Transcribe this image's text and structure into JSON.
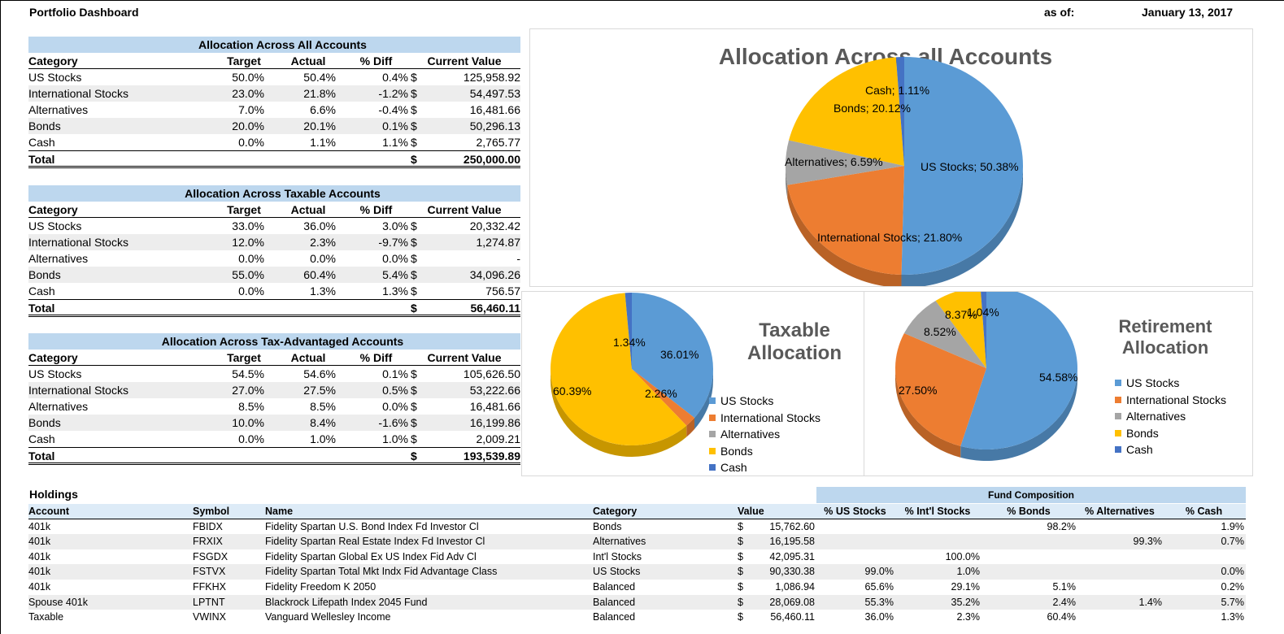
{
  "header": {
    "title": "Portfolio Dashboard",
    "as_of_label": "as of:",
    "as_of_date": "January 13, 2017"
  },
  "columns": {
    "category": "Category",
    "target": "Target",
    "actual": "Actual",
    "diff": "% Diff",
    "current_value": "Current Value",
    "total": "Total",
    "dollar": "$"
  },
  "tables": [
    {
      "title": "Allocation Across All Accounts",
      "rows": [
        {
          "category": "US Stocks",
          "target": "50.0%",
          "actual": "50.4%",
          "diff": "0.4%",
          "value": "125,958.92"
        },
        {
          "category": "International Stocks",
          "target": "23.0%",
          "actual": "21.8%",
          "diff": "-1.2%",
          "value": "54,497.53"
        },
        {
          "category": "Alternatives",
          "target": "7.0%",
          "actual": "6.6%",
          "diff": "-0.4%",
          "value": "16,481.66"
        },
        {
          "category": "Bonds",
          "target": "20.0%",
          "actual": "20.1%",
          "diff": "0.1%",
          "value": "50,296.13"
        },
        {
          "category": "Cash",
          "target": "0.0%",
          "actual": "1.1%",
          "diff": "1.1%",
          "value": "2,765.77"
        }
      ],
      "total": "250,000.00"
    },
    {
      "title": "Allocation Across Taxable Accounts",
      "rows": [
        {
          "category": "US Stocks",
          "target": "33.0%",
          "actual": "36.0%",
          "diff": "3.0%",
          "value": "20,332.42"
        },
        {
          "category": "International Stocks",
          "target": "12.0%",
          "actual": "2.3%",
          "diff": "-9.7%",
          "value": "1,274.87"
        },
        {
          "category": "Alternatives",
          "target": "0.0%",
          "actual": "0.0%",
          "diff": "0.0%",
          "value": "-"
        },
        {
          "category": "Bonds",
          "target": "55.0%",
          "actual": "60.4%",
          "diff": "5.4%",
          "value": "34,096.26"
        },
        {
          "category": "Cash",
          "target": "0.0%",
          "actual": "1.3%",
          "diff": "1.3%",
          "value": "756.57"
        }
      ],
      "total": "56,460.11"
    },
    {
      "title": "Allocation Across Tax-Advantaged Accounts",
      "rows": [
        {
          "category": "US Stocks",
          "target": "54.5%",
          "actual": "54.6%",
          "diff": "0.1%",
          "value": "105,626.50"
        },
        {
          "category": "International Stocks",
          "target": "27.0%",
          "actual": "27.5%",
          "diff": "0.5%",
          "value": "53,222.66"
        },
        {
          "category": "Alternatives",
          "target": "8.5%",
          "actual": "8.5%",
          "diff": "0.0%",
          "value": "16,481.66"
        },
        {
          "category": "Bonds",
          "target": "10.0%",
          "actual": "8.4%",
          "diff": "-1.6%",
          "value": "16,199.86"
        },
        {
          "category": "Cash",
          "target": "0.0%",
          "actual": "1.0%",
          "diff": "1.0%",
          "value": "2,009.21"
        }
      ],
      "total": "193,539.89"
    }
  ],
  "colors": {
    "us": "#5b9bd5",
    "intl": "#ed7d31",
    "alt": "#a5a5a5",
    "bonds": "#ffc000",
    "cash": "#4472c4",
    "header_fill": "#bdd7ee",
    "stripe": "#ededed"
  },
  "charts": [
    {
      "title": "Allocation Across all Accounts",
      "values": [
        50.38,
        21.8,
        6.59,
        20.12,
        1.11
      ],
      "labels": [
        "US Stocks; 50.38%",
        "International Stocks; 21.80%",
        "Alternatives; 6.59%",
        "Bonds; 20.12%",
        "Cash; 1.11%"
      ]
    },
    {
      "title_line1": "Taxable",
      "title_line2": "Allocation",
      "values": [
        36.01,
        2.26,
        0.0,
        60.39,
        1.34
      ],
      "labels": [
        "36.01%",
        "2.26%",
        "",
        "60.39%",
        "1.34%"
      ]
    },
    {
      "title_line1": "Retirement",
      "title_line2": "Allocation",
      "values": [
        54.58,
        27.5,
        8.52,
        8.37,
        1.04
      ],
      "labels": [
        "54.58%",
        "27.50%",
        "8.52%",
        "8.37%",
        "1.04%"
      ]
    }
  ],
  "legend": [
    "US Stocks",
    "International Stocks",
    "Alternatives",
    "Bonds",
    "Cash"
  ],
  "holdings": {
    "title": "Holdings",
    "fund_composition": "Fund Composition",
    "headers": [
      "Account",
      "Symbol",
      "Name",
      "Category",
      "Value",
      "% US Stocks",
      "% Int'l Stocks",
      "% Bonds",
      "% Alternatives",
      "% Cash"
    ],
    "rows": [
      {
        "account": "401k",
        "symbol": "FBIDX",
        "name": "Fidelity Spartan U.S. Bond Index Fd Investor Cl",
        "category": "Bonds",
        "value": "15,762.60",
        "us": "",
        "intl": "",
        "bonds": "98.2%",
        "alt": "",
        "cash": "1.9%"
      },
      {
        "account": "401k",
        "symbol": "FRXIX",
        "name": "Fidelity Spartan Real Estate Index Fd Investor Cl",
        "category": "Alternatives",
        "value": "16,195.58",
        "us": "",
        "intl": "",
        "bonds": "",
        "alt": "99.3%",
        "cash": "0.7%"
      },
      {
        "account": "401k",
        "symbol": "FSGDX",
        "name": "Fidelity Spartan Global Ex US Index Fid Adv Cl",
        "category": "Int'l Stocks",
        "value": "42,095.31",
        "us": "",
        "intl": "100.0%",
        "bonds": "",
        "alt": "",
        "cash": ""
      },
      {
        "account": "401k",
        "symbol": "FSTVX",
        "name": "Fidelity Spartan Total Mkt Indx Fid Advantage Class",
        "category": "US Stocks",
        "value": "90,330.38",
        "us": "99.0%",
        "intl": "1.0%",
        "bonds": "",
        "alt": "",
        "cash": "0.0%"
      },
      {
        "account": "401k",
        "symbol": "FFKHX",
        "name": "Fidelity Freedom K 2050",
        "category": "Balanced",
        "value": "1,086.94",
        "us": "65.6%",
        "intl": "29.1%",
        "bonds": "5.1%",
        "alt": "",
        "cash": "0.2%"
      },
      {
        "account": "Spouse 401k",
        "symbol": "LPTNT",
        "name": "Blackrock Lifepath Index 2045 Fund",
        "category": "Balanced",
        "value": "28,069.08",
        "us": "55.3%",
        "intl": "35.2%",
        "bonds": "2.4%",
        "alt": "1.4%",
        "cash": "5.7%"
      },
      {
        "account": "Taxable",
        "symbol": "VWINX",
        "name": "Vanguard Wellesley Income",
        "category": "Balanced",
        "value": "56,460.11",
        "us": "36.0%",
        "intl": "2.3%",
        "bonds": "60.4%",
        "alt": "",
        "cash": "1.3%"
      }
    ]
  }
}
